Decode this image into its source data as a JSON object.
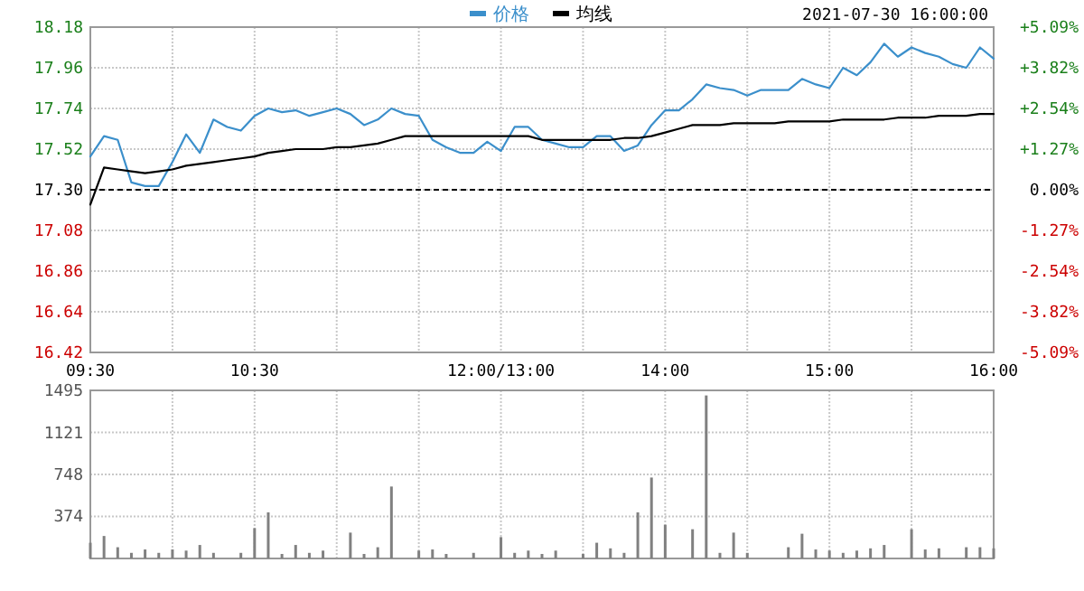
{
  "chart_data": [
    {
      "type": "line",
      "annotations": [
        "2021-07-30 16:00:00"
      ],
      "legend": "top",
      "grid": true,
      "categories": [
        "09:30",
        null,
        null,
        null,
        null,
        null,
        null,
        null,
        null,
        null,
        null,
        null,
        "10:30",
        null,
        null,
        null,
        null,
        null,
        null,
        null,
        null,
        null,
        null,
        null,
        null,
        null,
        null,
        null,
        null,
        null,
        "12:00/13:00",
        null,
        null,
        null,
        null,
        null,
        null,
        null,
        null,
        null,
        null,
        null,
        "14:00",
        null,
        null,
        null,
        null,
        null,
        null,
        null,
        null,
        null,
        null,
        null,
        "15:00",
        null,
        null,
        null,
        null,
        null,
        null,
        null,
        null,
        null,
        null,
        null,
        "16:00"
      ],
      "ylim": [
        16.42,
        18.18
      ],
      "yticks": [
        {
          "value": 18.18,
          "label": "18.18"
        },
        {
          "value": 17.96,
          "label": "17.96"
        },
        {
          "value": 17.74,
          "label": "17.74"
        },
        {
          "value": 17.52,
          "label": "17.52"
        },
        {
          "value": 17.3,
          "label": "17.30"
        },
        {
          "value": 17.08,
          "label": "17.08"
        },
        {
          "value": 16.86,
          "label": "16.86"
        },
        {
          "value": 16.64,
          "label": "16.64"
        },
        {
          "value": 16.42,
          "label": "16.42"
        }
      ],
      "y2lim": [
        -5.09,
        5.09
      ],
      "y2ticks": [
        {
          "value": 5.09,
          "label": "+5.09%"
        },
        {
          "value": 3.82,
          "label": "+3.82%"
        },
        {
          "value": 2.54,
          "label": "+2.54%"
        },
        {
          "value": 1.27,
          "label": "+1.27%"
        },
        {
          "value": 0,
          "label": "0.00%"
        },
        {
          "value": -1.27,
          "label": "-1.27%"
        },
        {
          "value": -2.54,
          "label": "-2.54%"
        },
        {
          "value": -3.82,
          "label": "-3.82%"
        },
        {
          "value": -5.09,
          "label": "-5.09%"
        }
      ],
      "ref_lines": [
        {
          "axis": "y",
          "value": 17.3,
          "line_style": "dashed",
          "color": "#000000"
        }
      ],
      "series": [
        {
          "name": "价格",
          "color": "#3b8fcb",
          "values": [
            17.48,
            17.59,
            17.57,
            17.34,
            17.32,
            17.32,
            17.45,
            17.6,
            17.5,
            17.68,
            17.64,
            17.62,
            17.7,
            17.74,
            17.72,
            17.73,
            17.7,
            17.72,
            17.74,
            17.71,
            17.65,
            17.68,
            17.74,
            17.71,
            17.7,
            17.57,
            17.53,
            17.5,
            17.5,
            17.56,
            17.51,
            17.64,
            17.64,
            17.57,
            17.55,
            17.53,
            17.53,
            17.59,
            17.59,
            17.51,
            17.54,
            17.65,
            17.73,
            17.73,
            17.79,
            17.87,
            17.85,
            17.84,
            17.81,
            17.84,
            17.84,
            17.84,
            17.9,
            17.87,
            17.85,
            17.96,
            17.92,
            17.99,
            18.09,
            18.02,
            18.07,
            18.04,
            18.02,
            17.98,
            17.96,
            18.07,
            18.01
          ]
        },
        {
          "name": "均线",
          "color": "#000000",
          "values": [
            17.22,
            17.42,
            17.41,
            17.4,
            17.39,
            17.4,
            17.41,
            17.43,
            17.44,
            17.45,
            17.46,
            17.47,
            17.48,
            17.5,
            17.51,
            17.52,
            17.52,
            17.52,
            17.53,
            17.53,
            17.54,
            17.55,
            17.57,
            17.59,
            17.59,
            17.59,
            17.59,
            17.59,
            17.59,
            17.59,
            17.59,
            17.59,
            17.59,
            17.57,
            17.57,
            17.57,
            17.57,
            17.57,
            17.57,
            17.58,
            17.58,
            17.59,
            17.61,
            17.63,
            17.65,
            17.65,
            17.65,
            17.66,
            17.66,
            17.66,
            17.66,
            17.67,
            17.67,
            17.67,
            17.67,
            17.68,
            17.68,
            17.68,
            17.68,
            17.69,
            17.69,
            17.69,
            17.7,
            17.7,
            17.7,
            17.71,
            17.71
          ]
        }
      ]
    },
    {
      "type": "bar",
      "grid": true,
      "tick_labels": "y",
      "color": "#808080",
      "categories": [
        null,
        null,
        null,
        null,
        null,
        null,
        null,
        null,
        null,
        null,
        null,
        null,
        null,
        null,
        null,
        null,
        null,
        null,
        null,
        null,
        null,
        null,
        null,
        null,
        null,
        null,
        null,
        null,
        null,
        null,
        null,
        null,
        null,
        null,
        null,
        null,
        null,
        null,
        null,
        null,
        null,
        null,
        null,
        null,
        null,
        null,
        null,
        null,
        null,
        null,
        null,
        null,
        null,
        null,
        null,
        null,
        null,
        null,
        null,
        null,
        null,
        null,
        null,
        null,
        null,
        null,
        null
      ],
      "ylim": [
        0,
        1495
      ],
      "yticks": [
        374,
        748,
        1121,
        1495
      ],
      "values": [
        140,
        200,
        100,
        50,
        80,
        50,
        80,
        70,
        120,
        50,
        null,
        50,
        270,
        410,
        40,
        120,
        50,
        70,
        null,
        230,
        40,
        100,
        640,
        null,
        70,
        80,
        40,
        null,
        50,
        null,
        190,
        50,
        70,
        40,
        70,
        null,
        40,
        140,
        90,
        50,
        410,
        720,
        300,
        null,
        260,
        1450,
        50,
        230,
        50,
        null,
        null,
        100,
        220,
        80,
        70,
        50,
        70,
        90,
        120,
        null,
        260,
        80,
        90,
        null,
        100,
        100,
        90
      ]
    }
  ]
}
